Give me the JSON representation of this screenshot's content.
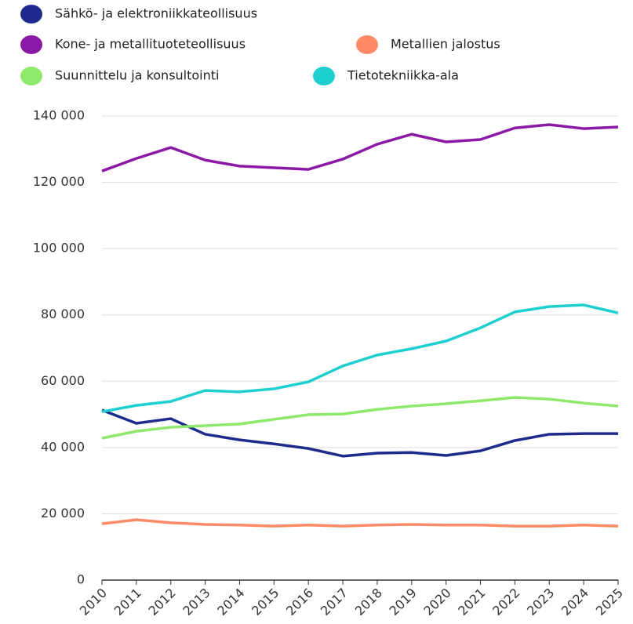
{
  "chart_data": {
    "type": "line",
    "categories": [
      "2010",
      "2011",
      "2012",
      "2013",
      "2014",
      "2015",
      "2016",
      "2017",
      "2018",
      "2019",
      "2020",
      "2021",
      "2022",
      "2023",
      "2024",
      "2025"
    ],
    "series": [
      {
        "name": "Sähkö- ja elektroniikkateollisuus",
        "color": "#1e2a8c",
        "values": [
          51300,
          47300,
          48700,
          44000,
          42300,
          41100,
          39700,
          37400,
          38300,
          38500,
          37600,
          39000,
          42100,
          44000,
          44200,
          44200
        ]
      },
      {
        "name": "Kone- ja metallituoteteollisuus",
        "color": "#8a1aa6",
        "values": [
          123400,
          127200,
          130500,
          126700,
          124900,
          124400,
          123900,
          127000,
          131500,
          134500,
          132200,
          132900,
          136400,
          137400,
          136200,
          136700
        ]
      },
      {
        "name": "Metallien jalostus",
        "color": "#ff8a65",
        "values": [
          17000,
          18200,
          17300,
          16800,
          16600,
          16300,
          16600,
          16300,
          16600,
          16800,
          16600,
          16600,
          16300,
          16300,
          16600,
          16300
        ]
      },
      {
        "name": "Suunnittelu ja konsultointi",
        "color": "#8ee86a",
        "values": [
          42800,
          44900,
          46100,
          46600,
          47100,
          48500,
          49900,
          50100,
          51500,
          52500,
          53200,
          54100,
          55100,
          54600,
          53400,
          52500
        ]
      },
      {
        "name": "Tietotekniikka-ala",
        "color": "#1ecfcf",
        "values": [
          50800,
          52700,
          53900,
          57200,
          56800,
          57700,
          59800,
          64600,
          67900,
          69800,
          72100,
          76100,
          80900,
          82500,
          83000,
          80600
        ]
      }
    ],
    "ylim": [
      0,
      140000
    ],
    "yticks": [
      0,
      {
        "value": 20000,
        "label": "20 000"
      },
      {
        "value": 40000,
        "label": "40 000"
      },
      {
        "value": 60000,
        "label": "60 000"
      },
      {
        "value": 80000,
        "label": "80 000"
      },
      {
        "value": 100000,
        "label": "100 000"
      },
      {
        "value": 120000,
        "label": "120 000"
      },
      {
        "value": 140000,
        "label": "140 000"
      }
    ],
    "grid": true
  }
}
